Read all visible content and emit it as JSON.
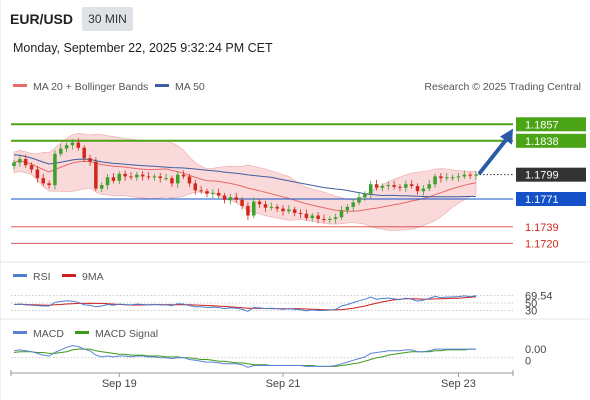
{
  "header": {
    "symbol": "EUR/USD",
    "timeframe": "30 MIN",
    "datetime": "Monday, September 22, 2025 9:32:24 PM CET"
  },
  "legend": {
    "ma20_label": "MA 20 + Bollinger Bands",
    "ma50_label": "MA 50",
    "attribution": "Research © 2025 Trading Central",
    "rsi_label": "RSI",
    "rsi_ma_label": "9MA",
    "macd_label": "MACD",
    "macd_signal_label": "MACD Signal"
  },
  "colors": {
    "bull": "#3aa12a",
    "bear": "#d1281c",
    "ma20": "#e86a6a",
    "ma50": "#3f5f9f",
    "band_fill": "#f7c9c9",
    "resistance": "#4aa416",
    "support": "#1450c8",
    "current": "#333333",
    "target_line": "#d94040",
    "arrow": "#2b5ba8",
    "rsi": "#4a7fd0",
    "rsi_ma": "#cc1f1f",
    "macd": "#5b82d6",
    "macd_signal": "#3e9a1a"
  },
  "chart_data": {
    "type": "candlestick",
    "y_range": [
      1.171,
      1.187
    ],
    "levels": [
      {
        "label": "1.1857",
        "value": 1.1857,
        "kind": "resistance"
      },
      {
        "label": "1.1838",
        "value": 1.1838,
        "kind": "resistance"
      },
      {
        "label": "1.1799",
        "value": 1.1799,
        "kind": "current"
      },
      {
        "label": "1.1771",
        "value": 1.1771,
        "kind": "support"
      },
      {
        "label": "1.1739",
        "value": 1.1739,
        "kind": "target"
      },
      {
        "label": "1.1720",
        "value": 1.172,
        "kind": "target"
      }
    ],
    "x_labels": [
      "Sep 19",
      "Sep 21",
      "Sep 23"
    ],
    "x_label_positions": [
      18,
      46,
      76
    ],
    "n_candles": 80,
    "closes": [
      1.1813,
      1.1817,
      1.181,
      1.1805,
      1.1795,
      1.1789,
      1.1787,
      1.1823,
      1.1829,
      1.1833,
      1.1836,
      1.183,
      1.1818,
      1.1814,
      1.1783,
      1.1787,
      1.1796,
      1.1792,
      1.18,
      1.1797,
      1.1796,
      1.1799,
      1.1797,
      1.1796,
      1.1797,
      1.1795,
      1.1795,
      1.1789,
      1.1799,
      1.1797,
      1.1789,
      1.1781,
      1.178,
      1.1777,
      1.1778,
      1.1775,
      1.177,
      1.1773,
      1.177,
      1.1763,
      1.1752,
      1.1768,
      1.1765,
      1.1761,
      1.1762,
      1.176,
      1.1757,
      1.1759,
      1.1755,
      1.1754,
      1.1749,
      1.1752,
      1.1748,
      1.1747,
      1.1748,
      1.175,
      1.1758,
      1.1762,
      1.1767,
      1.1773,
      1.1777,
      1.1788,
      1.1784,
      1.1786,
      1.1787,
      1.1785,
      1.1784,
      1.1788,
      1.1786,
      1.178,
      1.1783,
      1.1788,
      1.1797,
      1.1795,
      1.1796,
      1.1796,
      1.1797,
      1.1799,
      1.1798,
      1.1799
    ],
    "target_arrow": {
      "from_value": 1.1799,
      "to_value": 1.1852
    },
    "ma50_end_values": [
      1.183,
      1.1828,
      1.1824,
      1.182,
      1.1817
    ],
    "rsi": {
      "value_label": "69.54",
      "levels": [
        70,
        50,
        30
      ],
      "tick_labels": [
        "50",
        "30"
      ],
      "values": [
        46,
        47,
        45,
        44,
        43,
        42,
        42,
        52,
        54,
        56,
        55,
        52,
        45,
        44,
        40,
        42,
        46,
        44,
        47,
        46,
        45,
        47,
        46,
        45,
        46,
        45,
        45,
        43,
        48,
        47,
        43,
        40,
        40,
        38,
        39,
        38,
        35,
        37,
        36,
        33,
        28,
        38,
        37,
        35,
        36,
        35,
        33,
        35,
        33,
        32,
        29,
        32,
        30,
        30,
        31,
        33,
        42,
        46,
        51,
        56,
        60,
        66,
        60,
        62,
        63,
        61,
        59,
        63,
        60,
        55,
        58,
        62,
        68,
        64,
        66,
        66,
        67,
        69,
        67,
        69.54
      ]
    },
    "macd": {
      "value_label": "0.00",
      "zero_label": "0",
      "macd": [
        0.0008,
        0.0009,
        0.0008,
        0.0007,
        0.0005,
        0.0003,
        0.0002,
        0.0006,
        0.0009,
        0.0012,
        0.0014,
        0.0013,
        0.001,
        0.0008,
        0.0003,
        0.0001,
        0.0002,
        0.0001,
        0.0002,
        0.0002,
        0.0001,
        0.0002,
        0.0002,
        0.0001,
        0.0001,
        0.0,
        0.0,
        -0.0001,
        0.0,
        0.0,
        -0.0002,
        -0.0003,
        -0.0004,
        -0.0005,
        -0.0005,
        -0.0006,
        -0.0007,
        -0.0007,
        -0.0007,
        -0.0008,
        -0.0011,
        -0.0009,
        -0.0009,
        -0.0009,
        -0.0009,
        -0.0009,
        -0.0009,
        -0.0009,
        -0.0009,
        -0.0009,
        -0.001,
        -0.001,
        -0.001,
        -0.001,
        -0.001,
        -0.0009,
        -0.0007,
        -0.0005,
        -0.0003,
        -0.0001,
        0.0001,
        0.0005,
        0.0006,
        0.0007,
        0.0008,
        0.0008,
        0.0008,
        0.0009,
        0.0009,
        0.0007,
        0.0007,
        0.0008,
        0.001,
        0.001,
        0.001,
        0.001,
        0.001,
        0.001,
        0.001,
        0.001
      ],
      "signal": [
        0.0006,
        0.0007,
        0.0007,
        0.0007,
        0.0006,
        0.0006,
        0.0005,
        0.0005,
        0.0006,
        0.0007,
        0.0009,
        0.001,
        0.001,
        0.001,
        0.0008,
        0.0007,
        0.0006,
        0.0005,
        0.0004,
        0.0004,
        0.0003,
        0.0003,
        0.0003,
        0.0002,
        0.0002,
        0.0002,
        0.0001,
        0.0001,
        0.0001,
        0.0,
        0.0,
        -0.0001,
        -0.0002,
        -0.0002,
        -0.0003,
        -0.0004,
        -0.0004,
        -0.0005,
        -0.0006,
        -0.0006,
        -0.0007,
        -0.0008,
        -0.0008,
        -0.0008,
        -0.0009,
        -0.0009,
        -0.0009,
        -0.0009,
        -0.0009,
        -0.0009,
        -0.0009,
        -0.0009,
        -0.001,
        -0.001,
        -0.001,
        -0.001,
        -0.0009,
        -0.0008,
        -0.0007,
        -0.0006,
        -0.0004,
        -0.0002,
        0.0,
        0.0001,
        0.0003,
        0.0004,
        0.0005,
        0.0006,
        0.0007,
        0.0007,
        0.0007,
        0.0007,
        0.0008,
        0.0008,
        0.0009,
        0.0009,
        0.0009,
        0.0009,
        0.001,
        0.001
      ]
    }
  }
}
